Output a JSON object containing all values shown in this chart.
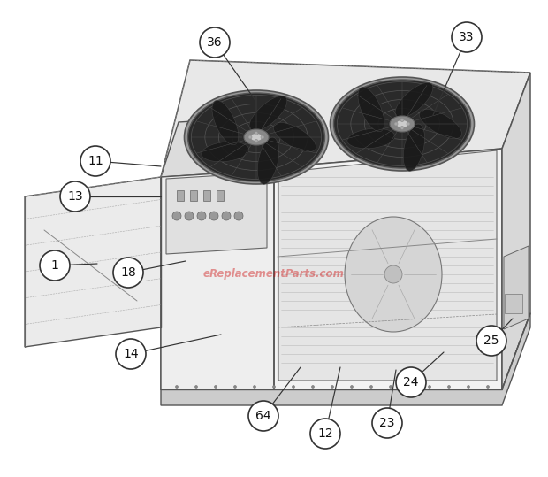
{
  "background_color": "#ffffff",
  "watermark": "eReplacementParts.com",
  "line_color": "#555555",
  "callout_data": [
    [
      "1",
      62,
      300,
      110,
      298
    ],
    [
      "11",
      108,
      182,
      182,
      188
    ],
    [
      "13",
      85,
      222,
      182,
      222
    ],
    [
      "18",
      145,
      308,
      210,
      295
    ],
    [
      "14",
      148,
      400,
      250,
      378
    ],
    [
      "36",
      243,
      48,
      290,
      115
    ],
    [
      "33",
      528,
      42,
      490,
      130
    ],
    [
      "64",
      298,
      470,
      340,
      415
    ],
    [
      "12",
      368,
      490,
      385,
      415
    ],
    [
      "23",
      438,
      478,
      448,
      418
    ],
    [
      "24",
      465,
      432,
      502,
      398
    ],
    [
      "25",
      556,
      385,
      580,
      360
    ]
  ]
}
